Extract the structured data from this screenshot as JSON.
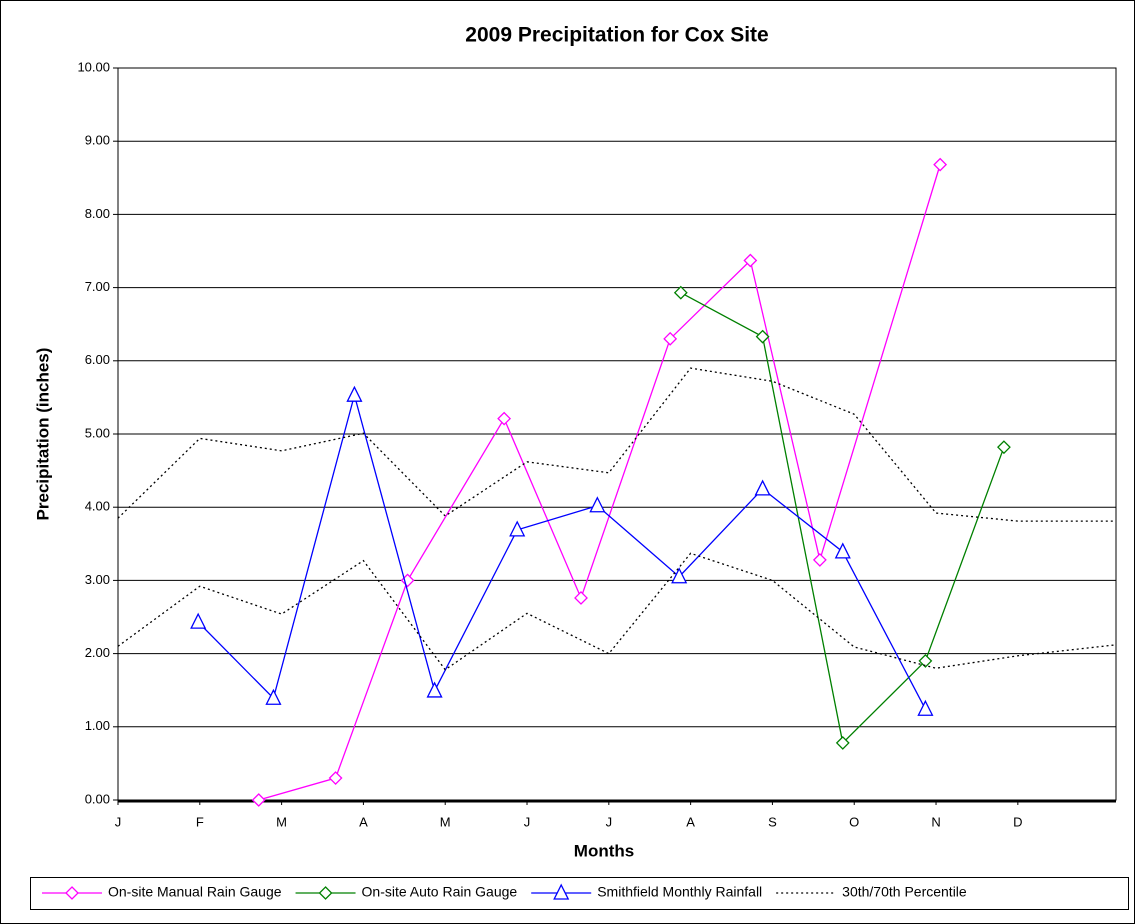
{
  "chart_data": {
    "type": "line",
    "title": "2009 Precipitation for Cox Site",
    "xlabel": "Months",
    "ylabel": "Precipitation (inches)",
    "xlim": [
      0,
      12.2
    ],
    "xticks": [
      {
        "value": 0,
        "label": "J"
      },
      {
        "value": 1,
        "label": "F"
      },
      {
        "value": 2,
        "label": "M"
      },
      {
        "value": 3,
        "label": "A"
      },
      {
        "value": 4,
        "label": "M"
      },
      {
        "value": 5,
        "label": "J"
      },
      {
        "value": 6,
        "label": "J"
      },
      {
        "value": 7,
        "label": "A"
      },
      {
        "value": 8,
        "label": "S"
      },
      {
        "value": 9,
        "label": "O"
      },
      {
        "value": 10,
        "label": "N"
      },
      {
        "value": 11,
        "label": "D"
      }
    ],
    "ylim": [
      0,
      10
    ],
    "yticks": [
      {
        "value": 0,
        "label": "0.00"
      },
      {
        "value": 1,
        "label": "1.00"
      },
      {
        "value": 2,
        "label": "2.00"
      },
      {
        "value": 3,
        "label": "3.00"
      },
      {
        "value": 4,
        "label": "4.00"
      },
      {
        "value": 5,
        "label": "5.00"
      },
      {
        "value": 6,
        "label": "6.00"
      },
      {
        "value": 7,
        "label": "7.00"
      },
      {
        "value": 8,
        "label": "8.00"
      },
      {
        "value": 9,
        "label": "9.00"
      },
      {
        "value": 10,
        "label": "10.00"
      }
    ],
    "grid": true,
    "legend": "bottom",
    "series": [
      {
        "name": "On-site Manual Rain Gauge",
        "color": "#ff00ff",
        "marker": "diamond",
        "x": [
          1.72,
          2.66,
          3.54,
          4.72,
          5.66,
          6.75,
          7.73,
          8.58,
          10.05
        ],
        "values": [
          0,
          0.3,
          3.0,
          5.21,
          2.76,
          6.3,
          7.37,
          3.28,
          8.68
        ]
      },
      {
        "name": "On-site Auto Rain Gauge",
        "color": "#008000",
        "marker": "diamond",
        "x": [
          6.88,
          7.88,
          8.86,
          9.87,
          10.83
        ],
        "values": [
          6.93,
          6.33,
          0.78,
          1.9,
          4.82
        ]
      },
      {
        "name": "Smithfield Monthly Rainfall",
        "color": "#0000ff",
        "marker": "triangle",
        "x": [
          0.98,
          1.9,
          2.89,
          3.87,
          4.88,
          5.86,
          6.86,
          7.88,
          8.86,
          9.87
        ],
        "values": [
          2.43,
          1.39,
          5.53,
          1.49,
          3.69,
          4.02,
          3.05,
          4.25,
          3.39,
          1.24
        ]
      },
      {
        "name": "30th/70th Percentile",
        "color": "#000000",
        "marker": "none",
        "dashed": true,
        "x": [
          0,
          1,
          2,
          3,
          4,
          5,
          6,
          7,
          8,
          9,
          10,
          11,
          12.2
        ],
        "lines": [
          {
            "values": [
              3.85,
              4.94,
              4.77,
              5.01,
              3.88,
              4.62,
              4.47,
              5.9,
              5.72,
              5.27,
              3.92,
              3.81,
              3.81
            ]
          },
          {
            "values": [
              2.1,
              2.92,
              2.54,
              3.27,
              1.78,
              2.55,
              2.0,
              3.37,
              3.0,
              2.09,
              1.8,
              1.97,
              2.12
            ]
          }
        ]
      }
    ]
  }
}
